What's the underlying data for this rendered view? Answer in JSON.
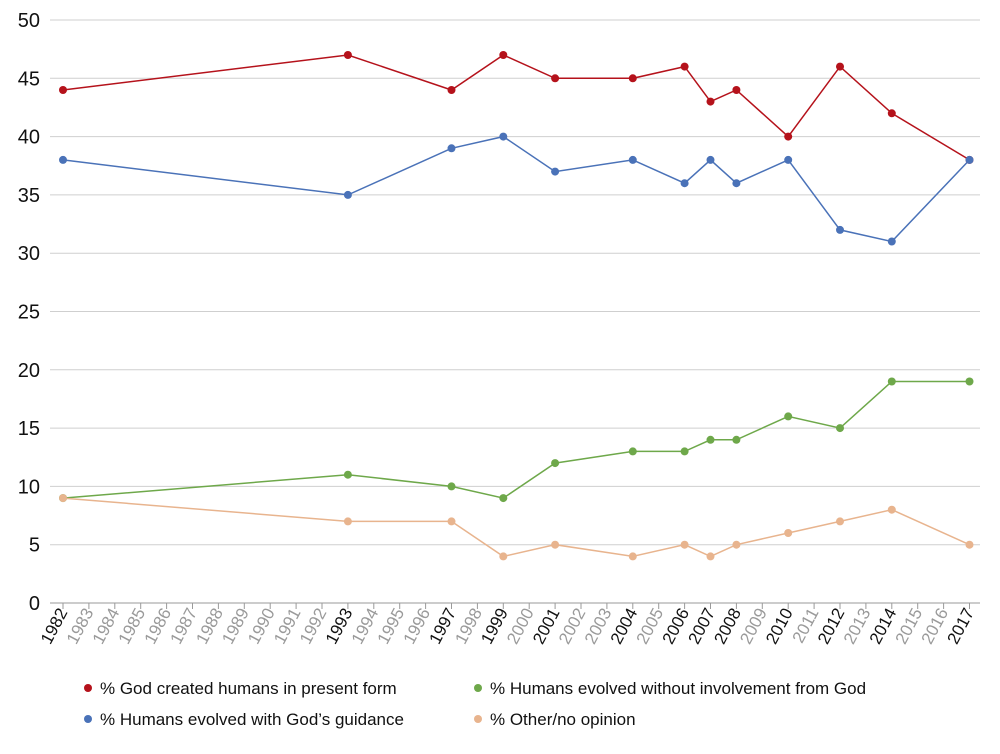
{
  "chart_data": {
    "type": "line",
    "title": "",
    "xlabel": "",
    "ylabel": "",
    "ylim": [
      0,
      50
    ],
    "y_ticks": [
      0,
      5,
      10,
      15,
      20,
      25,
      30,
      35,
      40,
      45,
      50
    ],
    "grid": "horizontal",
    "legend_position": "bottom",
    "x_axis_years": [
      1982,
      1983,
      1984,
      1985,
      1986,
      1987,
      1988,
      1989,
      1990,
      1991,
      1992,
      1993,
      1994,
      1995,
      1996,
      1997,
      1998,
      1999,
      2000,
      2001,
      2002,
      2003,
      2004,
      2005,
      2006,
      2007,
      2008,
      2009,
      2010,
      2011,
      2012,
      2013,
      2014,
      2015,
      2016,
      2017
    ],
    "x": [
      1982,
      1993,
      1997,
      1999,
      2001,
      2004,
      2006,
      2007,
      2008,
      2010,
      2012,
      2014,
      2017
    ],
    "series": [
      {
        "name": "% God created humans in present form",
        "color": "#b5121b",
        "values": [
          44,
          47,
          44,
          47,
          45,
          45,
          46,
          43,
          44,
          40,
          46,
          42,
          38
        ]
      },
      {
        "name": "% Humans evolved with God’s guidance",
        "color": "#4a72b8",
        "values": [
          38,
          35,
          39,
          40,
          37,
          38,
          36,
          38,
          36,
          38,
          32,
          31,
          38
        ]
      },
      {
        "name": "% Humans evolved without involvement from God",
        "color": "#6ea84a",
        "values": [
          9,
          11,
          10,
          9,
          12,
          13,
          13,
          14,
          14,
          16,
          15,
          19,
          19
        ]
      },
      {
        "name": "% Other/no opinion",
        "color": "#e8b48e",
        "values": [
          9,
          7,
          7,
          4,
          5,
          4,
          5,
          4,
          5,
          6,
          7,
          8,
          5
        ]
      }
    ],
    "colors": {
      "grid": "#cfcfcf",
      "axis": "#9a9a9a",
      "tick_active": "#111111",
      "tick_inactive": "#9a9a9a"
    }
  }
}
